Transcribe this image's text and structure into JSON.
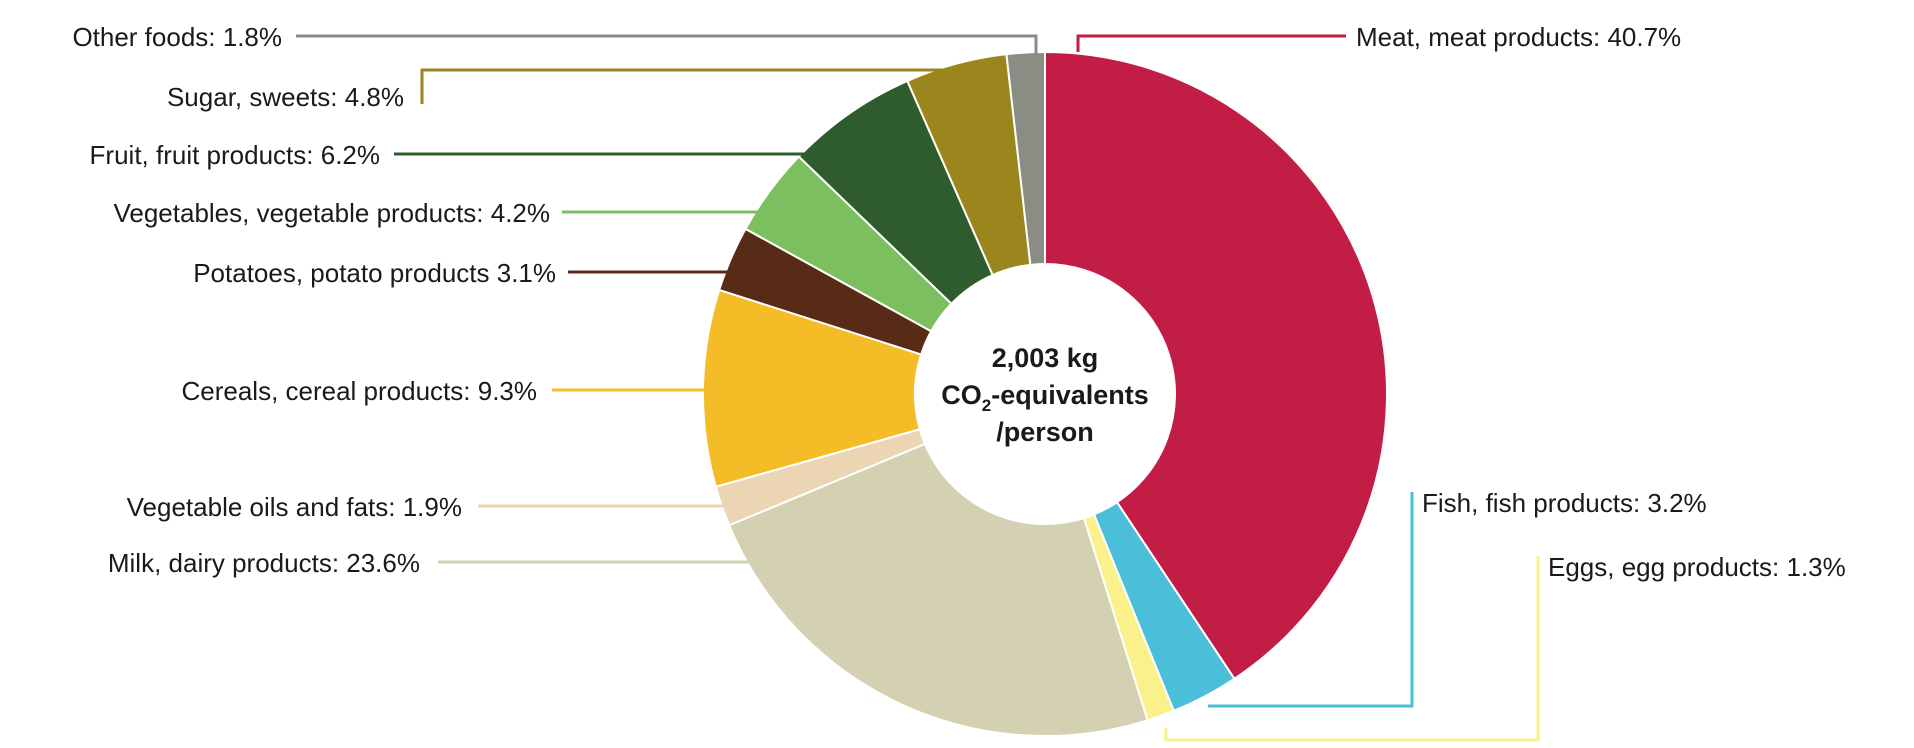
{
  "chart_data": {
    "type": "pie",
    "title": "",
    "center_label": {
      "line1": "2,003 kg",
      "line2_main": "CO",
      "line2_sub": "2",
      "line2_rest": "-equivalents",
      "line3": "/person"
    },
    "slices": [
      {
        "name": "Meat, meat products",
        "value": 40.7,
        "label": "Meat, meat products: 40.7%",
        "color": "#c11d45"
      },
      {
        "name": "Fish, fish products",
        "value": 3.2,
        "label": "Fish, fish products: 3.2%",
        "color": "#4bbfd9"
      },
      {
        "name": "Eggs, egg products",
        "value": 1.3,
        "label": "Eggs, egg products: 1.3%",
        "color": "#fbf18a"
      },
      {
        "name": "Milk, dairy products",
        "value": 23.6,
        "label": "Milk, dairy products: 23.6%",
        "color": "#d4d1b3"
      },
      {
        "name": "Vegetable oils and fats",
        "value": 1.9,
        "label": "Vegetable oils and fats: 1.9%",
        "color": "#ecd5b3"
      },
      {
        "name": "Cereals, cereal products",
        "value": 9.3,
        "label": "Cereals, cereal products: 9.3%",
        "color": "#f4bc27"
      },
      {
        "name": "Potatoes, potato products",
        "value": 3.1,
        "label": "Potatoes, potato products 3.1%",
        "color": "#582b17"
      },
      {
        "name": "Vegetables, vegetable products",
        "value": 4.2,
        "label": "Vegetables, vegetable products: 4.2%",
        "color": "#7cbf5e"
      },
      {
        "name": "Fruit, fruit products",
        "value": 6.2,
        "label": "Fruit, fruit products: 6.2%",
        "color": "#2e5c2c"
      },
      {
        "name": "Sugar, sweets",
        "value": 4.8,
        "label": "Sugar, sweets: 4.8%",
        "color": "#9b861d"
      },
      {
        "name": "Other foods",
        "value": 1.8,
        "label": "Other foods: 1.8%",
        "color": "#8a8d83"
      }
    ]
  }
}
